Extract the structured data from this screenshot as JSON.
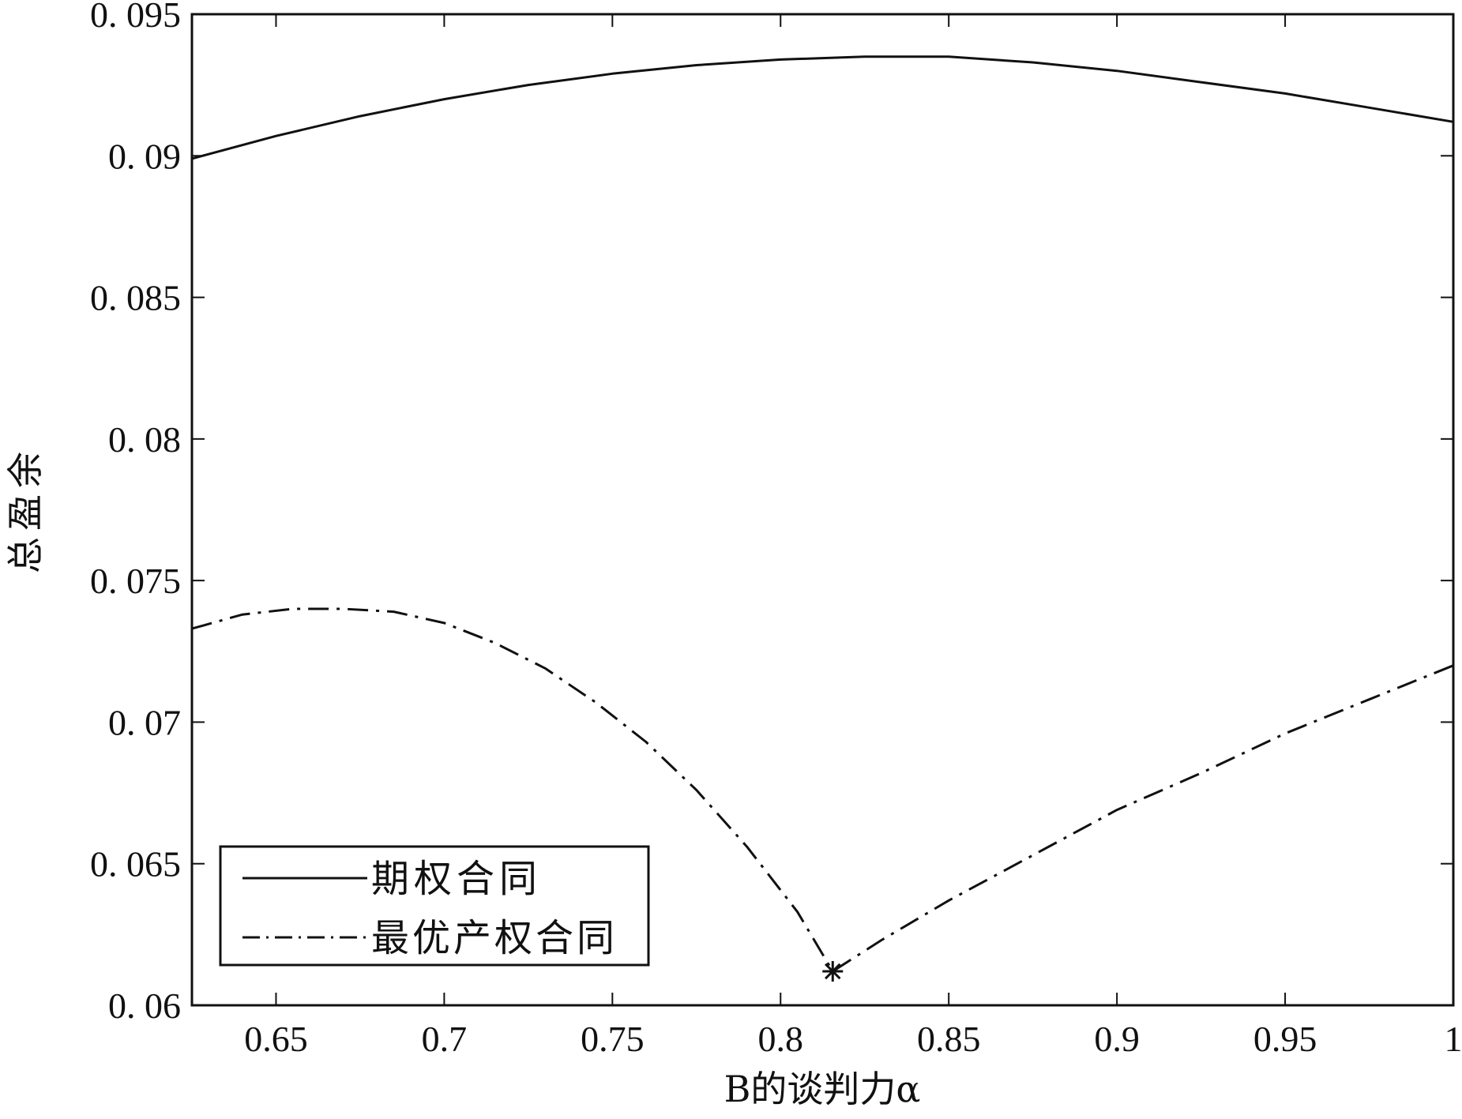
{
  "chart_data": {
    "type": "line",
    "xlabel": "B的谈判力α",
    "ylabel": "总盈余",
    "xlim": [
      0.625,
      1.0
    ],
    "ylim": [
      0.06,
      0.095
    ],
    "xticks": [
      0.65,
      0.7,
      0.75,
      0.8,
      0.85,
      0.9,
      0.95,
      1.0
    ],
    "xtick_labels": [
      "0.65",
      "0.7",
      "0.75",
      "0.8",
      "0.85",
      "0.9",
      "0.95",
      "1"
    ],
    "yticks": [
      0.06,
      0.065,
      0.07,
      0.075,
      0.08,
      0.085,
      0.09,
      0.095
    ],
    "ytick_labels": [
      "0. 06",
      "0. 065",
      "0. 07",
      "0. 075",
      "0. 08",
      "0. 085",
      "0. 09",
      "0. 095"
    ],
    "grid": false,
    "legend_position": "bottom-left",
    "series": [
      {
        "name": "期权合同",
        "style": "solid",
        "x": [
          0.625,
          0.65,
          0.675,
          0.7,
          0.725,
          0.75,
          0.775,
          0.8,
          0.825,
          0.85,
          0.875,
          0.9,
          0.925,
          0.95,
          0.975,
          1.0
        ],
        "y": [
          0.0899,
          0.0907,
          0.0914,
          0.092,
          0.0925,
          0.0929,
          0.0932,
          0.0934,
          0.0935,
          0.0935,
          0.0933,
          0.093,
          0.0926,
          0.0922,
          0.0917,
          0.0912
        ]
      },
      {
        "name": "最优产权合同",
        "style": "dashdot",
        "x": [
          0.625,
          0.64,
          0.655,
          0.67,
          0.685,
          0.7,
          0.715,
          0.73,
          0.745,
          0.76,
          0.775,
          0.79,
          0.805,
          0.8155,
          0.83,
          0.85,
          0.875,
          0.9,
          0.925,
          0.95,
          0.975,
          1.0
        ],
        "y": [
          0.0733,
          0.0738,
          0.074,
          0.074,
          0.0739,
          0.0735,
          0.0728,
          0.0719,
          0.0707,
          0.0693,
          0.0676,
          0.0656,
          0.0633,
          0.0612,
          0.0623,
          0.0637,
          0.0653,
          0.0669,
          0.0682,
          0.0696,
          0.0708,
          0.072
        ]
      }
    ],
    "annotations": [
      {
        "marker": "star",
        "x": 0.8155,
        "y": 0.0612
      }
    ]
  }
}
